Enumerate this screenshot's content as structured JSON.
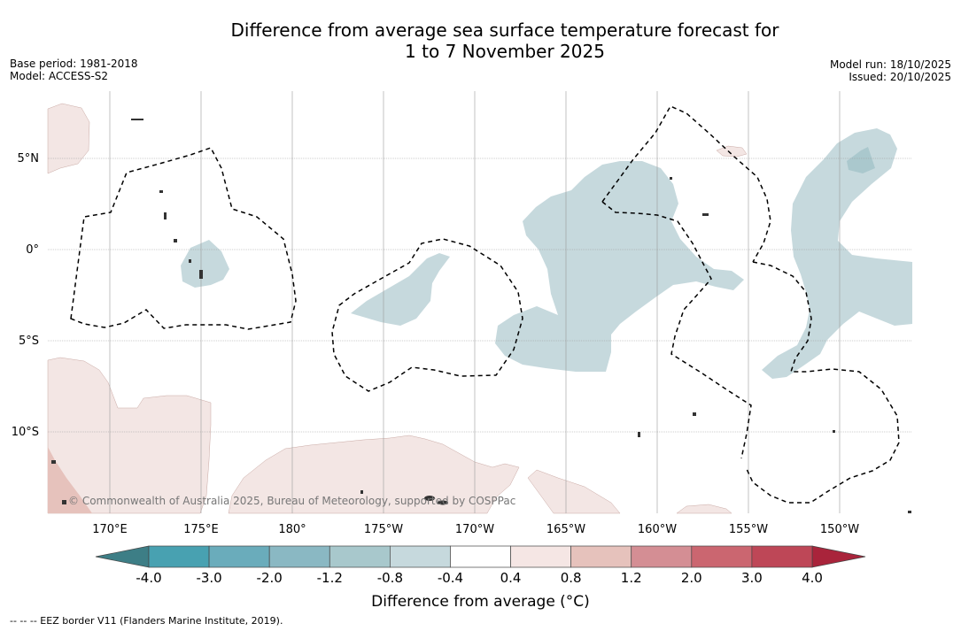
{
  "title": {
    "line1": "Difference from average sea surface temperature forecast for",
    "line2": "1 to 7 November 2025"
  },
  "meta": {
    "base_period": "Base period: 1981-2018",
    "model": "Model: ACCESS-S2",
    "model_run": "Model run: 18/10/2025",
    "issued": "Issued: 20/10/2025"
  },
  "map": {
    "lat_labels": [
      "5°N",
      "0°",
      "5°S",
      "10°S"
    ],
    "lon_labels": [
      "170°E",
      "175°E",
      "180°",
      "175°W",
      "170°W",
      "165°W",
      "160°W",
      "155°W",
      "150°W"
    ],
    "copyright": "© Commonwealth of Australia 2025, Bureau of Meteorology, supported by COSPPac",
    "colors": {
      "cool_light": "#c6d9dd",
      "cool_mid": "#aac8cd",
      "warm_light": "#f3e6e4",
      "warm_mid": "#e6c2bc",
      "land": "#333333",
      "eez": "#000000",
      "grid": "#888888"
    }
  },
  "colorbar": {
    "ticks": [
      "-4.0",
      "-3.0",
      "-2.0",
      "-1.2",
      "-0.8",
      "-0.4",
      "0.4",
      "0.8",
      "1.2",
      "2.0",
      "3.0",
      "4.0"
    ],
    "colors": [
      "#48a1b1",
      "#6aacbb",
      "#8ab8c3",
      "#a8c8cc",
      "#c6d9dd",
      "#ffffff",
      "#f5e6e4",
      "#e6c2bc",
      "#d48e94",
      "#cb6670",
      "#be4757"
    ],
    "low_extend_color": "#3d7e86",
    "high_extend_color": "#a9243b",
    "label": "Difference from average (°C)"
  },
  "footnote": "--  --  -- EEZ border V11 (Flanders Marine Institute, 2019)."
}
